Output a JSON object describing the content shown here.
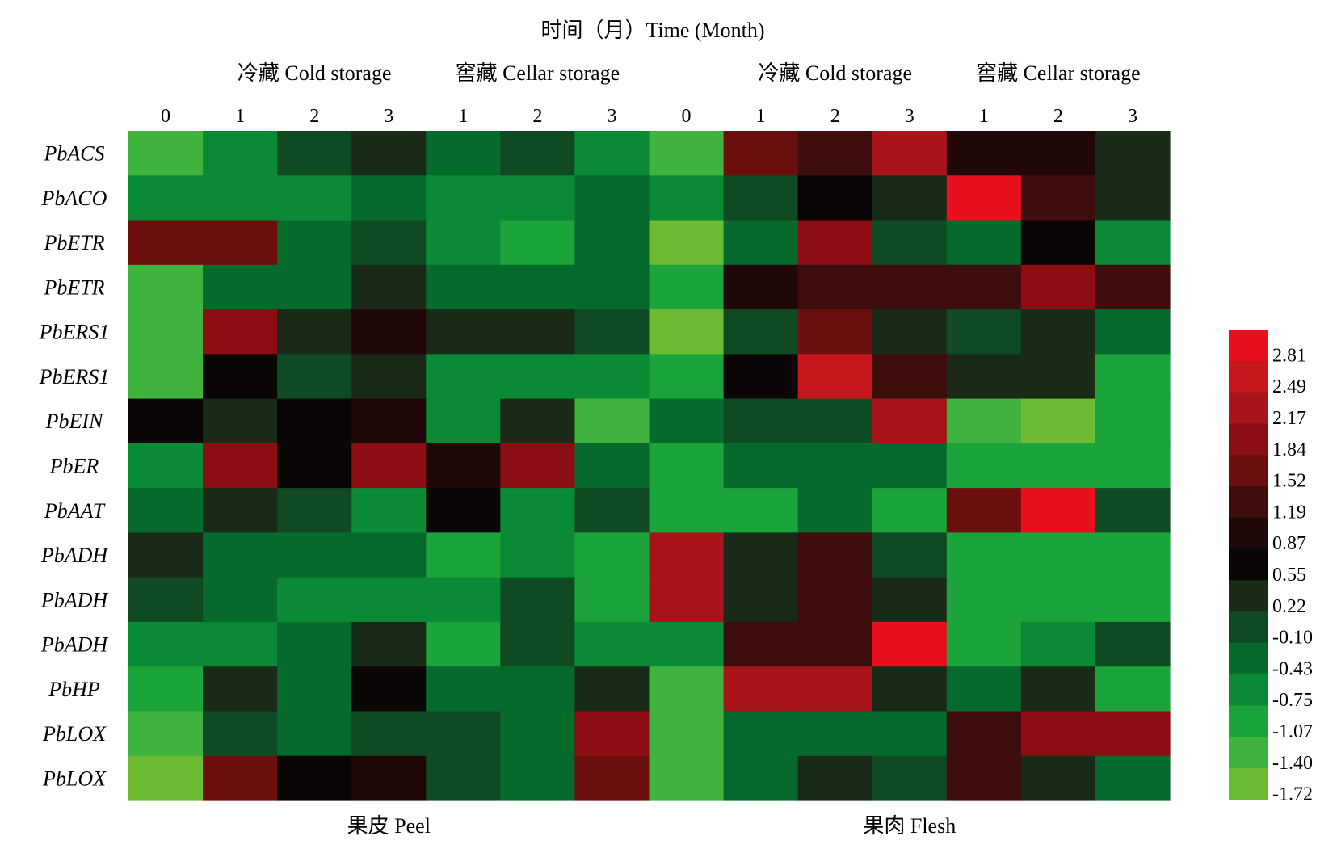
{
  "chart_data": {
    "type": "heatmap",
    "title": "时间（月）Time (Month)",
    "groups": [
      {
        "label": "冷藏 Cold storage",
        "col_start": 1,
        "col_end": 3
      },
      {
        "label": "窖藏 Cellar storage",
        "col_start": 4,
        "col_end": 6
      },
      {
        "label": "冷藏 Cold storage",
        "col_start": 8,
        "col_end": 10
      },
      {
        "label": "窖藏 Cellar storage",
        "col_start": 11,
        "col_end": 13
      }
    ],
    "tissues": [
      {
        "label": "果皮 Peel",
        "col_start": 0,
        "col_end": 6
      },
      {
        "label": "果肉 Flesh",
        "col_start": 7,
        "col_end": 13
      }
    ],
    "columns": [
      "0",
      "1",
      "2",
      "3",
      "1",
      "2",
      "3",
      "0",
      "1",
      "2",
      "3",
      "1",
      "2",
      "3"
    ],
    "rows": [
      "PbACS",
      "PbACO",
      "PbETR",
      "PbETR",
      "PbERS1",
      "PbERS1",
      "PbEIN",
      "PbER",
      "PbAAT",
      "PbADH",
      "PbADH",
      "PbADH",
      "PbHP",
      "PbLOX",
      "PbLOX"
    ],
    "values": [
      [
        -1.4,
        -0.75,
        -0.1,
        0.22,
        -0.43,
        -0.1,
        -0.75,
        -1.4,
        1.52,
        1.19,
        2.17,
        0.87,
        0.87,
        0.22
      ],
      [
        -0.75,
        -0.75,
        -0.75,
        -0.43,
        -0.75,
        -0.75,
        -0.43,
        -0.75,
        -0.1,
        0.55,
        0.22,
        2.81,
        1.19,
        0.22
      ],
      [
        1.52,
        1.52,
        -0.43,
        -0.1,
        -0.75,
        -1.07,
        -0.43,
        -1.72,
        -0.43,
        1.84,
        -0.1,
        -0.43,
        0.55,
        -0.75
      ],
      [
        -1.4,
        -0.43,
        -0.43,
        0.22,
        -0.43,
        -0.43,
        -0.43,
        -1.07,
        0.87,
        1.19,
        1.19,
        1.19,
        1.84,
        1.19
      ],
      [
        -1.4,
        1.84,
        0.22,
        0.87,
        0.22,
        0.22,
        -0.1,
        -1.72,
        -0.1,
        1.52,
        0.22,
        -0.1,
        0.22,
        -0.43
      ],
      [
        -1.4,
        0.55,
        -0.1,
        0.22,
        -0.75,
        -0.75,
        -0.75,
        -1.07,
        0.55,
        2.49,
        1.19,
        0.22,
        0.22,
        -1.07
      ],
      [
        0.55,
        0.22,
        0.55,
        0.87,
        -0.75,
        0.22,
        -1.4,
        -0.43,
        -0.1,
        -0.1,
        2.17,
        -1.4,
        -1.72,
        -1.07
      ],
      [
        -0.75,
        1.84,
        0.55,
        1.84,
        0.87,
        1.84,
        -0.43,
        -1.07,
        -0.43,
        -0.43,
        -0.43,
        -1.07,
        -1.07,
        -1.07
      ],
      [
        -0.43,
        0.22,
        -0.1,
        -0.75,
        0.55,
        -0.75,
        -0.1,
        -1.07,
        -1.07,
        -0.43,
        -1.07,
        1.52,
        2.81,
        -0.1
      ],
      [
        0.22,
        -0.43,
        -0.43,
        -0.43,
        -1.07,
        -0.75,
        -1.07,
        2.17,
        0.22,
        1.19,
        -0.1,
        -1.07,
        -1.07,
        -1.07
      ],
      [
        -0.1,
        -0.43,
        -0.75,
        -0.75,
        -0.75,
        -0.1,
        -1.07,
        2.17,
        0.22,
        1.19,
        0.22,
        -1.07,
        -1.07,
        -1.07
      ],
      [
        -0.75,
        -0.75,
        -0.43,
        0.22,
        -1.07,
        -0.1,
        -0.75,
        -0.75,
        1.19,
        1.19,
        2.81,
        -1.07,
        -0.75,
        -0.1
      ],
      [
        -1.07,
        0.22,
        -0.43,
        0.55,
        -0.43,
        -0.43,
        0.22,
        -1.4,
        2.17,
        2.17,
        0.22,
        -0.43,
        0.22,
        -1.07
      ],
      [
        -1.4,
        -0.1,
        -0.43,
        -0.1,
        -0.1,
        -0.43,
        1.84,
        -1.4,
        -0.43,
        -0.43,
        -0.43,
        1.19,
        1.84,
        1.84
      ],
      [
        -1.72,
        1.52,
        0.55,
        0.87,
        -0.1,
        -0.43,
        1.52,
        -1.4,
        -0.43,
        0.22,
        -0.1,
        1.19,
        0.22,
        -0.43
      ]
    ],
    "colorbar": {
      "ticks": [
        "2.81",
        "2.49",
        "2.17",
        "1.84",
        "1.52",
        "1.19",
        "0.87",
        "0.55",
        "0.22",
        "-0.10",
        "-0.43",
        "-0.75",
        "-1.07",
        "-1.40",
        "-1.72"
      ],
      "colors": [
        "#e8101c",
        "#c8161e",
        "#a81419",
        "#8a0e12",
        "#6a0e0e",
        "#3e0d0d",
        "#200808",
        "#0a0606",
        "#1a2a18",
        "#104a22",
        "#066a2c",
        "#0b8a35",
        "#1aa43a",
        "#40b23e",
        "#6cbb32"
      ]
    }
  }
}
